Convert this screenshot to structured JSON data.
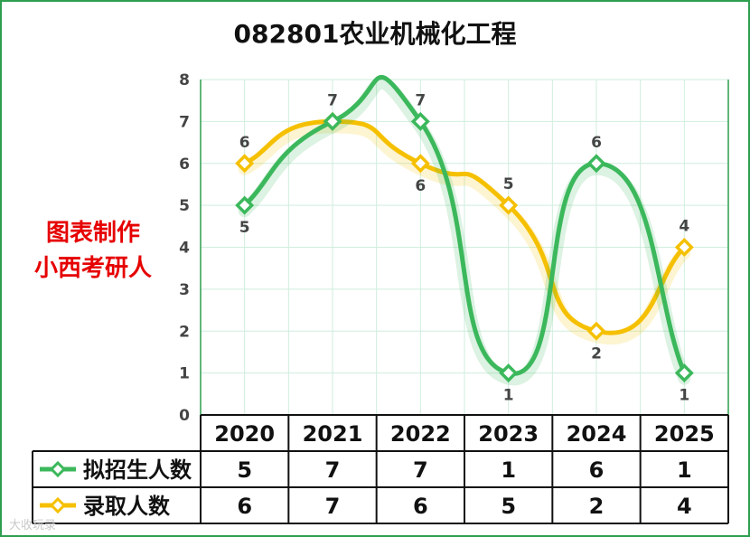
{
  "chart_data": {
    "type": "line",
    "title": "082801农业机械化工程",
    "categories": [
      "2020",
      "2021",
      "2022",
      "2023",
      "2024",
      "2025"
    ],
    "series": [
      {
        "name": "拟招生人数",
        "values": [
          5,
          7,
          7,
          1,
          6,
          1
        ],
        "color": "#3cb85c"
      },
      {
        "name": "录取人数",
        "values": [
          6,
          7,
          6,
          5,
          2,
          4
        ],
        "color": "#f5c000"
      }
    ],
    "ylim": [
      0,
      8
    ],
    "yticks": [
      0,
      1,
      2,
      3,
      4,
      5,
      6,
      7,
      8
    ],
    "grid": true,
    "legend": "data-table-below",
    "smooth": true
  },
  "watermark": {
    "line1": "图表制作",
    "line2": "小西考研人",
    "color": "#e60000"
  },
  "footer_watermark": "大收玩录"
}
